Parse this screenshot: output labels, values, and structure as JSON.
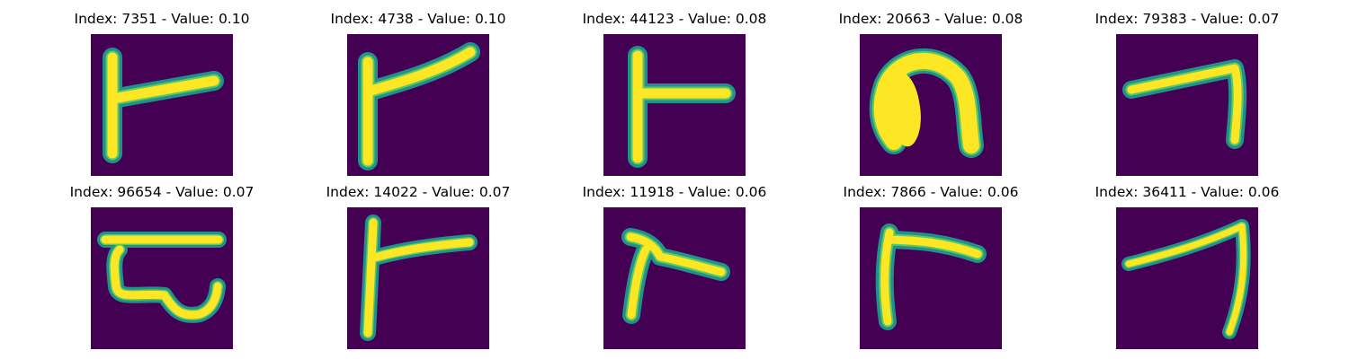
{
  "figure": {
    "colors": {
      "background": "#440154",
      "edge": "#21918c",
      "mid": "#5ec962",
      "stroke": "#fde725"
    },
    "panels": [
      {
        "title": "Index: 7351 - Value: 0.10",
        "glyph": "t-right-bar"
      },
      {
        "title": "Index: 4738 - Value: 0.10",
        "glyph": "tilted-t-right-bar"
      },
      {
        "title": "Index: 44123 - Value: 0.08",
        "glyph": "t-left-stem"
      },
      {
        "title": "Index: 20663 - Value: 0.08",
        "glyph": "arch-loop"
      },
      {
        "title": "Index: 79383 - Value: 0.07",
        "glyph": "hook-down-right"
      },
      {
        "title": "Index: 96654 - Value: 0.07",
        "glyph": "curled-form"
      },
      {
        "title": "Index: 14022 - Value: 0.07",
        "glyph": "vertical-t"
      },
      {
        "title": "Index: 11918 - Value: 0.06",
        "glyph": "slanted-t"
      },
      {
        "title": "Index: 7866 - Value: 0.06",
        "glyph": "corner-stroke"
      },
      {
        "title": "Index: 36411 - Value: 0.06",
        "glyph": "long-hook"
      }
    ]
  }
}
